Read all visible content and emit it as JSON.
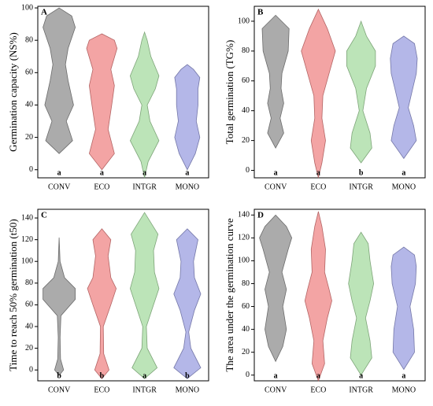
{
  "chart_data": [
    {
      "type": "violin",
      "label": "A",
      "ylabel": "Germination capacity (NS%)",
      "categories": [
        "CONV",
        "ECO",
        "INTGR",
        "MONO"
      ],
      "colors": [
        "#8f8f8f",
        "#ef8585",
        "#a6dba0",
        "#9b9fe0"
      ],
      "letters": [
        "a",
        "a",
        "a",
        "a"
      ],
      "ylim": [
        -5,
        101
      ],
      "yticks": [
        0,
        20,
        40,
        60,
        80,
        100
      ],
      "violins": [
        {
          "y": [
            10,
            18,
            30,
            40,
            55,
            65,
            75,
            88,
            95,
            100
          ],
          "density": [
            0,
            0.75,
            0.4,
            0.8,
            0.5,
            0.35,
            0.5,
            0.9,
            0.7,
            0
          ]
        },
        {
          "y": [
            0,
            10,
            25,
            40,
            52,
            62,
            75,
            80,
            84
          ],
          "density": [
            0,
            0.7,
            0.35,
            0.55,
            0.7,
            0.5,
            0.85,
            0.7,
            0
          ]
        },
        {
          "y": [
            -5,
            5,
            18,
            30,
            40,
            50,
            58,
            70,
            80,
            85
          ],
          "density": [
            0,
            0.2,
            0.8,
            0.3,
            0.15,
            0.6,
            0.8,
            0.35,
            0.15,
            0
          ]
        },
        {
          "y": [
            0,
            10,
            20,
            30,
            40,
            50,
            57,
            62,
            65
          ],
          "density": [
            0,
            0.45,
            0.7,
            0.5,
            0.6,
            0.6,
            0.7,
            0.35,
            0
          ]
        }
      ]
    },
    {
      "type": "violin",
      "label": "B",
      "ylabel": "Total germination (TG%)",
      "categories": [
        "CONV",
        "ECO",
        "INTGR",
        "MONO"
      ],
      "colors": [
        "#8f8f8f",
        "#ef8585",
        "#a6dba0",
        "#9b9fe0"
      ],
      "letters": [
        "a",
        "a",
        "b",
        "a"
      ],
      "ylim": [
        -5,
        110
      ],
      "yticks": [
        0,
        20,
        40,
        60,
        80,
        100
      ],
      "violins": [
        {
          "y": [
            15,
            25,
            35,
            45,
            55,
            65,
            80,
            95,
            104
          ],
          "density": [
            0,
            0.45,
            0.25,
            0.45,
            0.3,
            0.35,
            0.7,
            0.75,
            0
          ]
        },
        {
          "y": [
            -5,
            5,
            20,
            35,
            50,
            65,
            80,
            95,
            108
          ],
          "density": [
            0,
            0.2,
            0.4,
            0.2,
            0.25,
            0.6,
            0.95,
            0.5,
            0
          ]
        },
        {
          "y": [
            5,
            15,
            25,
            40,
            55,
            70,
            80,
            90,
            100
          ],
          "density": [
            0,
            0.6,
            0.5,
            0.1,
            0.3,
            0.8,
            0.8,
            0.3,
            0
          ]
        },
        {
          "y": [
            8,
            20,
            30,
            42,
            55,
            65,
            75,
            85,
            90
          ],
          "density": [
            0,
            0.7,
            0.55,
            0.25,
            0.5,
            0.7,
            0.75,
            0.6,
            0
          ]
        }
      ]
    },
    {
      "type": "violin",
      "label": "C",
      "ylabel": "Time to reach 50% germination (t50)",
      "categories": [
        "CONV",
        "ECO",
        "INTGR",
        "MONO"
      ],
      "colors": [
        "#8f8f8f",
        "#ef8585",
        "#a6dba0",
        "#9b9fe0"
      ],
      "letters": [
        "b",
        "b",
        "a",
        "b"
      ],
      "ylim": [
        -10,
        148
      ],
      "yticks": [
        0,
        20,
        40,
        60,
        80,
        100,
        120,
        140
      ],
      "violins": [
        {
          "y": [
            -5,
            0,
            10,
            30,
            50,
            65,
            75,
            85,
            100,
            122
          ],
          "density": [
            0,
            0.25,
            0.08,
            0.05,
            0.1,
            0.9,
            0.9,
            0.3,
            0.05,
            0
          ]
        },
        {
          "y": [
            -8,
            0,
            15,
            40,
            60,
            75,
            85,
            105,
            120,
            130
          ],
          "density": [
            0,
            0.4,
            0.1,
            0.08,
            0.5,
            0.8,
            0.5,
            0.35,
            0.5,
            0
          ]
        },
        {
          "y": [
            -8,
            2,
            20,
            40,
            60,
            75,
            90,
            110,
            125,
            145
          ],
          "density": [
            0,
            0.7,
            0.15,
            0.1,
            0.5,
            0.8,
            0.55,
            0.5,
            0.75,
            0
          ]
        },
        {
          "y": [
            -8,
            2,
            20,
            35,
            55,
            70,
            85,
            100,
            120,
            130
          ],
          "density": [
            0,
            0.75,
            0.2,
            0.08,
            0.4,
            0.75,
            0.4,
            0.35,
            0.6,
            0
          ]
        }
      ]
    },
    {
      "type": "violin",
      "label": "D",
      "ylabel": "The area under the germination curve",
      "categories": [
        "CONV",
        "ECO",
        "INTGR",
        "MONO"
      ],
      "colors": [
        "#8f8f8f",
        "#ef8585",
        "#a6dba0",
        "#9b9fe0"
      ],
      "letters": [
        "a",
        "a",
        "a",
        "a"
      ],
      "ylim": [
        -5,
        145
      ],
      "yticks": [
        0,
        20,
        40,
        60,
        80,
        100,
        120,
        140
      ],
      "violins": [
        {
          "y": [
            12,
            25,
            40,
            60,
            75,
            90,
            110,
            120,
            130,
            140
          ],
          "density": [
            0,
            0.4,
            0.6,
            0.4,
            0.6,
            0.35,
            0.7,
            0.9,
            0.6,
            0
          ]
        },
        {
          "y": [
            -5,
            10,
            30,
            50,
            65,
            75,
            90,
            110,
            130,
            143
          ],
          "density": [
            0,
            0.35,
            0.25,
            0.5,
            0.75,
            0.6,
            0.35,
            0.4,
            0.2,
            0
          ]
        },
        {
          "y": [
            0,
            15,
            30,
            50,
            65,
            80,
            100,
            115,
            125
          ],
          "density": [
            0,
            0.6,
            0.5,
            0.25,
            0.5,
            0.7,
            0.5,
            0.4,
            0
          ]
        },
        {
          "y": [
            5,
            20,
            40,
            60,
            80,
            95,
            105,
            112
          ],
          "density": [
            0,
            0.6,
            0.55,
            0.35,
            0.65,
            0.7,
            0.6,
            0
          ]
        }
      ]
    }
  ]
}
